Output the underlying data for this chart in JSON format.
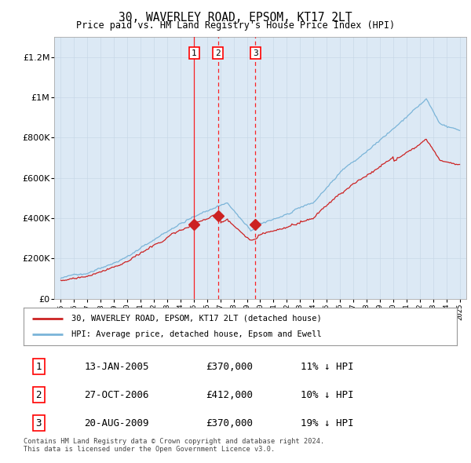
{
  "title": "30, WAVERLEY ROAD, EPSOM, KT17 2LT",
  "subtitle": "Price paid vs. HM Land Registry's House Price Index (HPI)",
  "background_color": "#dce9f5",
  "plot_bg_color": "#dce9f5",
  "hpi_color": "#7ab4d8",
  "price_color": "#cc2222",
  "transactions": [
    {
      "num": 1,
      "date_label": "13-JAN-2005",
      "price": 370000,
      "hpi_pct": "11% ↓ HPI",
      "x_year": 2005.04
    },
    {
      "num": 2,
      "date_label": "27-OCT-2006",
      "price": 412000,
      "hpi_pct": "10% ↓ HPI",
      "x_year": 2006.82
    },
    {
      "num": 3,
      "date_label": "20-AUG-2009",
      "price": 370000,
      "hpi_pct": "19% ↓ HPI",
      "x_year": 2009.64
    }
  ],
  "legend_line1": "30, WAVERLEY ROAD, EPSOM, KT17 2LT (detached house)",
  "legend_line2": "HPI: Average price, detached house, Epsom and Ewell",
  "footnote": "Contains HM Land Registry data © Crown copyright and database right 2024.\nThis data is licensed under the Open Government Licence v3.0.",
  "ylim": [
    0,
    1300000
  ],
  "yticks": [
    0,
    200000,
    400000,
    600000,
    800000,
    1000000,
    1200000
  ],
  "xmin": 1994.5,
  "xmax": 2025.5
}
